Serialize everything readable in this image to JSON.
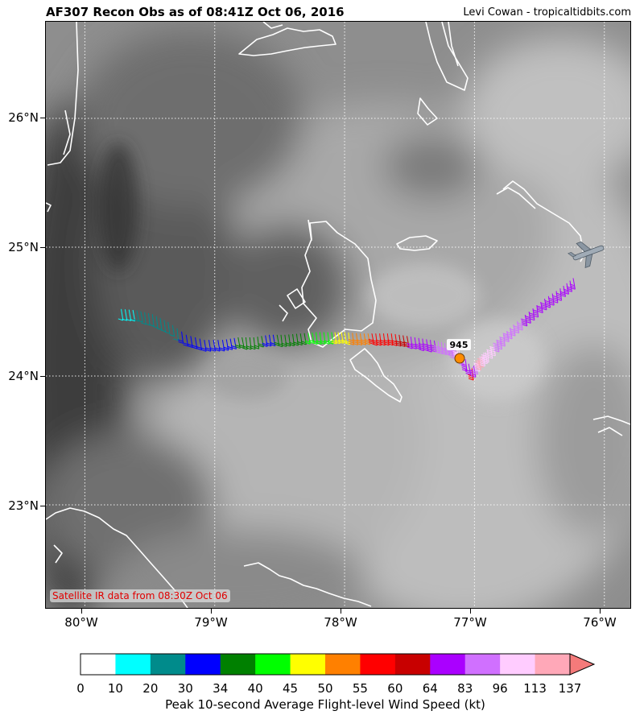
{
  "header": {
    "title": "AF307 Recon Obs as of 08:41Z Oct 06, 2016",
    "credit": "Levi Cowan - tropicaltidbits.com"
  },
  "map": {
    "satellite_label": "Satellite IR data from 08:30Z Oct 06",
    "lat_labels": [
      "26°N",
      "25°N",
      "24°N",
      "23°N"
    ],
    "lon_labels": [
      "80°W",
      "79°W",
      "78°W",
      "77°W",
      "76°W"
    ],
    "pressure_label": "945",
    "pressure_mb": 945,
    "grid_lines": true,
    "colors": {
      "coastline": "#ffffff",
      "gridline": "#ffffff",
      "center_marker": "#ff8c00",
      "aircraft": "#7a8a99"
    }
  },
  "colorbar": {
    "title": "Peak 10-second Average Flight-level Wind Speed (kt)",
    "ticks": [
      "0",
      "10",
      "20",
      "30",
      "34",
      "40",
      "45",
      "50",
      "55",
      "60",
      "64",
      "83",
      "96",
      "113",
      "137"
    ],
    "colors": [
      "#ffffff",
      "#00ffff",
      "#008b8b",
      "#0000ff",
      "#008000",
      "#00ff00",
      "#ffff00",
      "#ff8000",
      "#ff0000",
      "#c80000",
      "#aa00ff",
      "#d070ff",
      "#ffccff",
      "#ffa8b8"
    ],
    "extend_color": "#f47a7a"
  },
  "chart_data": {
    "type": "scatter",
    "title": "AF307 Recon Obs as of 08:41Z Oct 06, 2016",
    "xlabel": "",
    "ylabel": "",
    "x_unit": "degrees longitude",
    "y_unit": "degrees latitude",
    "xlim": [
      -80.3,
      -75.8
    ],
    "ylim": [
      22.2,
      26.75
    ],
    "series": [
      {
        "name": "flight-level wind obs (kt)",
        "points": [
          {
            "lon": -79.72,
            "lat": 24.52,
            "kt": 18
          },
          {
            "lon": -79.6,
            "lat": 24.51,
            "kt": 20
          },
          {
            "lon": -79.48,
            "lat": 24.48,
            "kt": 22
          },
          {
            "lon": -79.36,
            "lat": 24.42,
            "kt": 24
          },
          {
            "lon": -79.22,
            "lat": 24.32,
            "kt": 32
          },
          {
            "lon": -79.08,
            "lat": 24.28,
            "kt": 32
          },
          {
            "lon": -78.94,
            "lat": 24.28,
            "kt": 33
          },
          {
            "lon": -78.82,
            "lat": 24.3,
            "kt": 34
          },
          {
            "lon": -78.7,
            "lat": 24.3,
            "kt": 36
          },
          {
            "lon": -78.58,
            "lat": 24.32,
            "kt": 32
          },
          {
            "lon": -78.46,
            "lat": 24.32,
            "kt": 37
          },
          {
            "lon": -78.34,
            "lat": 24.33,
            "kt": 38
          },
          {
            "lon": -78.22,
            "lat": 24.34,
            "kt": 42
          },
          {
            "lon": -78.1,
            "lat": 24.34,
            "kt": 44
          },
          {
            "lon": -78.0,
            "lat": 24.34,
            "kt": 48
          },
          {
            "lon": -77.88,
            "lat": 24.33,
            "kt": 52
          },
          {
            "lon": -77.76,
            "lat": 24.33,
            "kt": 57
          },
          {
            "lon": -77.64,
            "lat": 24.33,
            "kt": 58
          },
          {
            "lon": -77.52,
            "lat": 24.31,
            "kt": 62
          },
          {
            "lon": -77.4,
            "lat": 24.29,
            "kt": 70
          },
          {
            "lon": -77.28,
            "lat": 24.27,
            "kt": 85
          },
          {
            "lon": -77.18,
            "lat": 24.24,
            "kt": 90
          },
          {
            "lon": -77.12,
            "lat": 24.2,
            "kt": 100
          },
          {
            "lon": -77.02,
            "lat": 24.06,
            "kt": 58
          },
          {
            "lon": -76.96,
            "lat": 24.14,
            "kt": 120
          },
          {
            "lon": -76.9,
            "lat": 24.2,
            "kt": 105
          },
          {
            "lon": -76.8,
            "lat": 24.3,
            "kt": 92
          },
          {
            "lon": -76.7,
            "lat": 24.4,
            "kt": 88
          },
          {
            "lon": -76.58,
            "lat": 24.5,
            "kt": 80
          },
          {
            "lon": -76.46,
            "lat": 24.6,
            "kt": 75
          },
          {
            "lon": -76.34,
            "lat": 24.68,
            "kt": 70
          },
          {
            "lon": -76.24,
            "lat": 24.76,
            "kt": 68
          }
        ]
      },
      {
        "name": "center fix",
        "points": [
          {
            "lon": -77.08,
            "lat": 24.14,
            "pressure_mb": 945
          }
        ]
      }
    ]
  }
}
